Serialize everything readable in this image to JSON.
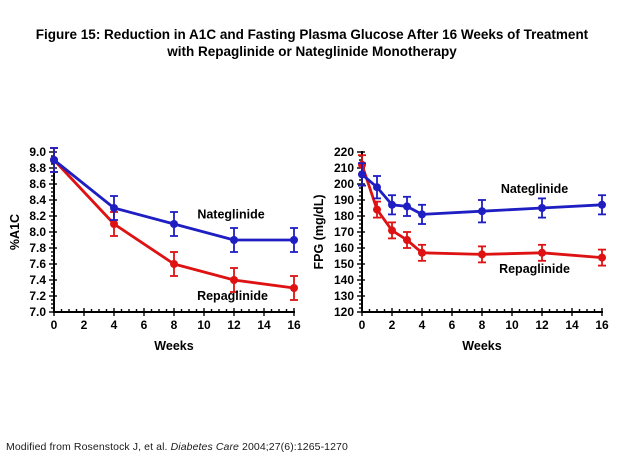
{
  "title": {
    "line1": "Figure 15: Reduction in A1C and Fasting Plasma Glucose After 16 Weeks of Treatment",
    "line2": "with Repaglinide or Nateglinide Monotherapy"
  },
  "footer": {
    "prefix": "Modified from Rosenstock J, et al. ",
    "italic": "Diabetes Care",
    "suffix": " 2004;27(6):1265-1270"
  },
  "colors": {
    "nateglinide": "#1E1EC3",
    "repaglinide": "#DE1212",
    "axis": "#000000",
    "text": "#000000"
  },
  "chart_data": [
    {
      "type": "line",
      "name": "a1c-chart",
      "title": "",
      "xlabel": "Weeks",
      "ylabel": "%A1C",
      "xlim": [
        0,
        16
      ],
      "ylim": [
        7.0,
        9.0
      ],
      "xticks": [
        0,
        2,
        4,
        6,
        8,
        10,
        12,
        14,
        16
      ],
      "yticks": [
        7.0,
        7.2,
        7.4,
        7.6,
        7.8,
        8.0,
        8.2,
        8.4,
        8.6,
        8.8,
        9.0
      ],
      "ytick_decimals": 1,
      "x_minor_step": 0.5,
      "y_minor_step": 0.05,
      "grid": false,
      "legend": "inline-labels",
      "series": [
        {
          "name": "Repaglinide",
          "color": "#DE1212",
          "x": [
            0,
            4,
            8,
            12,
            16
          ],
          "y": [
            8.9,
            8.1,
            7.6,
            7.4,
            7.3
          ],
          "yerr": [
            0.15,
            0.15,
            0.15,
            0.15,
            0.15
          ],
          "label_at": [
            11.9,
            7.2
          ]
        },
        {
          "name": "Nateglinide",
          "color": "#1E1EC3",
          "x": [
            0,
            4,
            8,
            12,
            16
          ],
          "y": [
            8.9,
            8.3,
            8.1,
            7.9,
            7.9
          ],
          "yerr": [
            0.15,
            0.15,
            0.15,
            0.15,
            0.15
          ],
          "label_at": [
            11.8,
            8.22
          ]
        }
      ]
    },
    {
      "type": "line",
      "name": "fpg-chart",
      "title": "",
      "xlabel": "Weeks",
      "ylabel": "FPG (mg/dL)",
      "xlim": [
        0,
        16
      ],
      "ylim": [
        120,
        220
      ],
      "xticks": [
        0,
        2,
        4,
        6,
        8,
        10,
        12,
        14,
        16
      ],
      "yticks": [
        120,
        130,
        140,
        150,
        160,
        170,
        180,
        190,
        200,
        210,
        220
      ],
      "ytick_decimals": 0,
      "x_minor_step": 0.5,
      "y_minor_step": 2.5,
      "grid": false,
      "legend": "inline-labels",
      "series": [
        {
          "name": "Repaglinide",
          "color": "#DE1212",
          "x": [
            0,
            1,
            2,
            3,
            4,
            8,
            12,
            16
          ],
          "y": [
            212,
            184,
            171,
            165,
            157,
            156,
            157,
            154
          ],
          "yerr": [
            6,
            5,
            5,
            5,
            5,
            5,
            5,
            5
          ],
          "label_at": [
            11.5,
            147
          ]
        },
        {
          "name": "Nateglinide",
          "color": "#1E1EC3",
          "x": [
            0,
            1,
            2,
            3,
            4,
            8,
            12,
            16
          ],
          "y": [
            206,
            198,
            187,
            186,
            181,
            183,
            185,
            187
          ],
          "yerr": [
            7,
            7,
            6,
            6,
            6,
            7,
            6,
            6
          ],
          "label_at": [
            11.5,
            197
          ]
        }
      ]
    }
  ]
}
